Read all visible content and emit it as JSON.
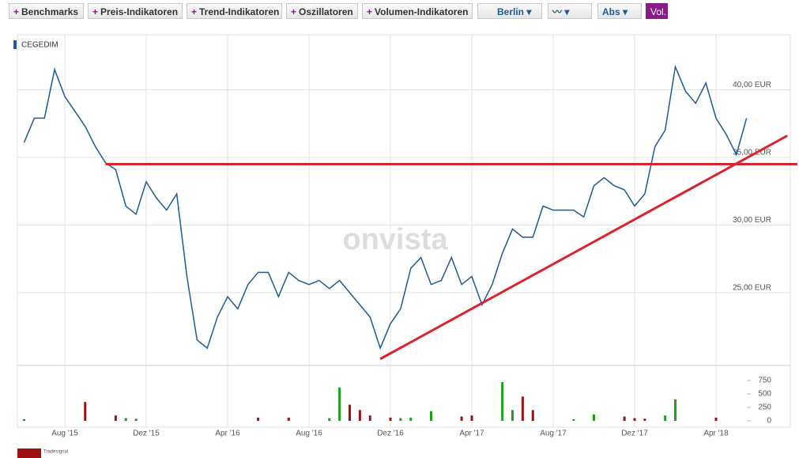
{
  "toolbar": {
    "buttons": [
      "Benchmarks",
      "Preis-Indikatoren",
      "Trend-Indikatoren",
      "Oszillatoren",
      "Volumen-Indikatoren"
    ],
    "exchange": "Berlin",
    "scale": "Abs",
    "volume_toggle": "Vol."
  },
  "chart_data": {
    "type": "line",
    "watermark": "onvista",
    "logo": "Tradesignal",
    "categories": [
      null,
      null,
      null,
      null,
      "Aug '15",
      null,
      null,
      null,
      null,
      null,
      null,
      null,
      "Dez '15",
      null,
      null,
      null,
      null,
      null,
      null,
      null,
      "Apr '16",
      null,
      null,
      null,
      null,
      null,
      null,
      null,
      "Aug '16",
      null,
      null,
      null,
      null,
      null,
      null,
      null,
      "Dez '16",
      null,
      null,
      null,
      null,
      null,
      null,
      null,
      "Apr '17",
      null,
      null,
      null,
      null,
      null,
      null,
      null,
      "Aug '17",
      null,
      null,
      null,
      null,
      null,
      null,
      null,
      "Dez '17",
      null,
      null,
      null,
      null,
      null,
      null,
      null,
      "Apr '18",
      null,
      null,
      null
    ],
    "series": [
      {
        "name": "CEGEDIM",
        "color": "#1f5a96",
        "values": [
          36.1,
          37.9,
          37.9,
          41.5,
          39.5,
          38.4,
          37.3,
          35.8,
          34.6,
          34.1,
          31.4,
          30.8,
          33.2,
          32.0,
          31.1,
          32.3,
          26.2,
          21.5,
          20.9,
          23.2,
          24.7,
          23.8,
          25.6,
          26.5,
          26.5,
          24.7,
          26.5,
          25.9,
          25.6,
          25.9,
          25.3,
          25.9,
          25.0,
          24.1,
          23.2,
          20.9,
          22.7,
          23.8,
          26.8,
          27.6,
          25.6,
          25.9,
          27.6,
          25.6,
          26.2,
          24.1,
          25.6,
          27.9,
          29.7,
          29.1,
          29.1,
          31.4,
          31.1,
          31.1,
          31.1,
          30.6,
          32.9,
          33.5,
          32.9,
          32.6,
          31.4,
          32.3,
          35.8,
          37.0,
          41.7,
          39.9,
          39.0,
          40.5,
          37.9,
          36.7,
          35.2,
          37.9
        ]
      }
    ],
    "ylim": [
      19.6,
      42.8
    ],
    "yticks": [
      {
        "value": 25,
        "label": "25,00 EUR"
      },
      {
        "value": 30,
        "label": "30,00 EUR"
      },
      {
        "value": 35,
        "label": "35,00 EUR"
      },
      {
        "value": 40,
        "label": "40,00 EUR"
      }
    ],
    "grid": true,
    "trend_lines": [
      {
        "color": "#d9232d",
        "start": [
          8,
          34.5
        ],
        "end": [
          76,
          34.5
        ]
      },
      {
        "color": "#d9232d",
        "start": [
          35,
          20.1
        ],
        "end": [
          75,
          36.6
        ]
      }
    ],
    "volume": {
      "ylim": [
        0,
        985
      ],
      "yticks": [
        0,
        250,
        500,
        750
      ],
      "series": [
        {
          "color": "#1aa31a",
          "values": [
            30,
            null,
            null,
            null,
            null,
            null,
            null,
            null,
            null,
            null,
            50,
            40,
            null,
            null,
            null,
            null,
            null,
            null,
            null,
            null,
            null,
            null,
            null,
            null,
            null,
            null,
            null,
            null,
            null,
            null,
            50,
            620,
            null,
            null,
            null,
            null,
            null,
            50,
            60,
            null,
            180,
            null,
            null,
            null,
            null,
            null,
            null,
            720,
            200,
            null,
            null,
            null,
            null,
            null,
            30,
            null,
            120,
            null,
            null,
            null,
            null,
            null,
            null,
            100,
            400,
            null,
            null,
            null,
            null,
            null,
            null,
            null
          ]
        },
        {
          "color": "#a01010",
          "values": [
            null,
            null,
            null,
            null,
            null,
            null,
            350,
            null,
            null,
            100,
            null,
            null,
            null,
            null,
            null,
            null,
            null,
            null,
            null,
            null,
            null,
            null,
            null,
            60,
            null,
            null,
            60,
            null,
            null,
            null,
            null,
            null,
            300,
            200,
            100,
            null,
            60,
            null,
            null,
            null,
            null,
            null,
            null,
            80,
            100,
            null,
            null,
            null,
            null,
            450,
            200,
            null,
            null,
            null,
            null,
            null,
            null,
            null,
            null,
            80,
            50,
            40,
            null,
            null,
            null,
            null,
            null,
            null,
            60,
            null,
            null,
            null
          ]
        }
      ]
    }
  }
}
